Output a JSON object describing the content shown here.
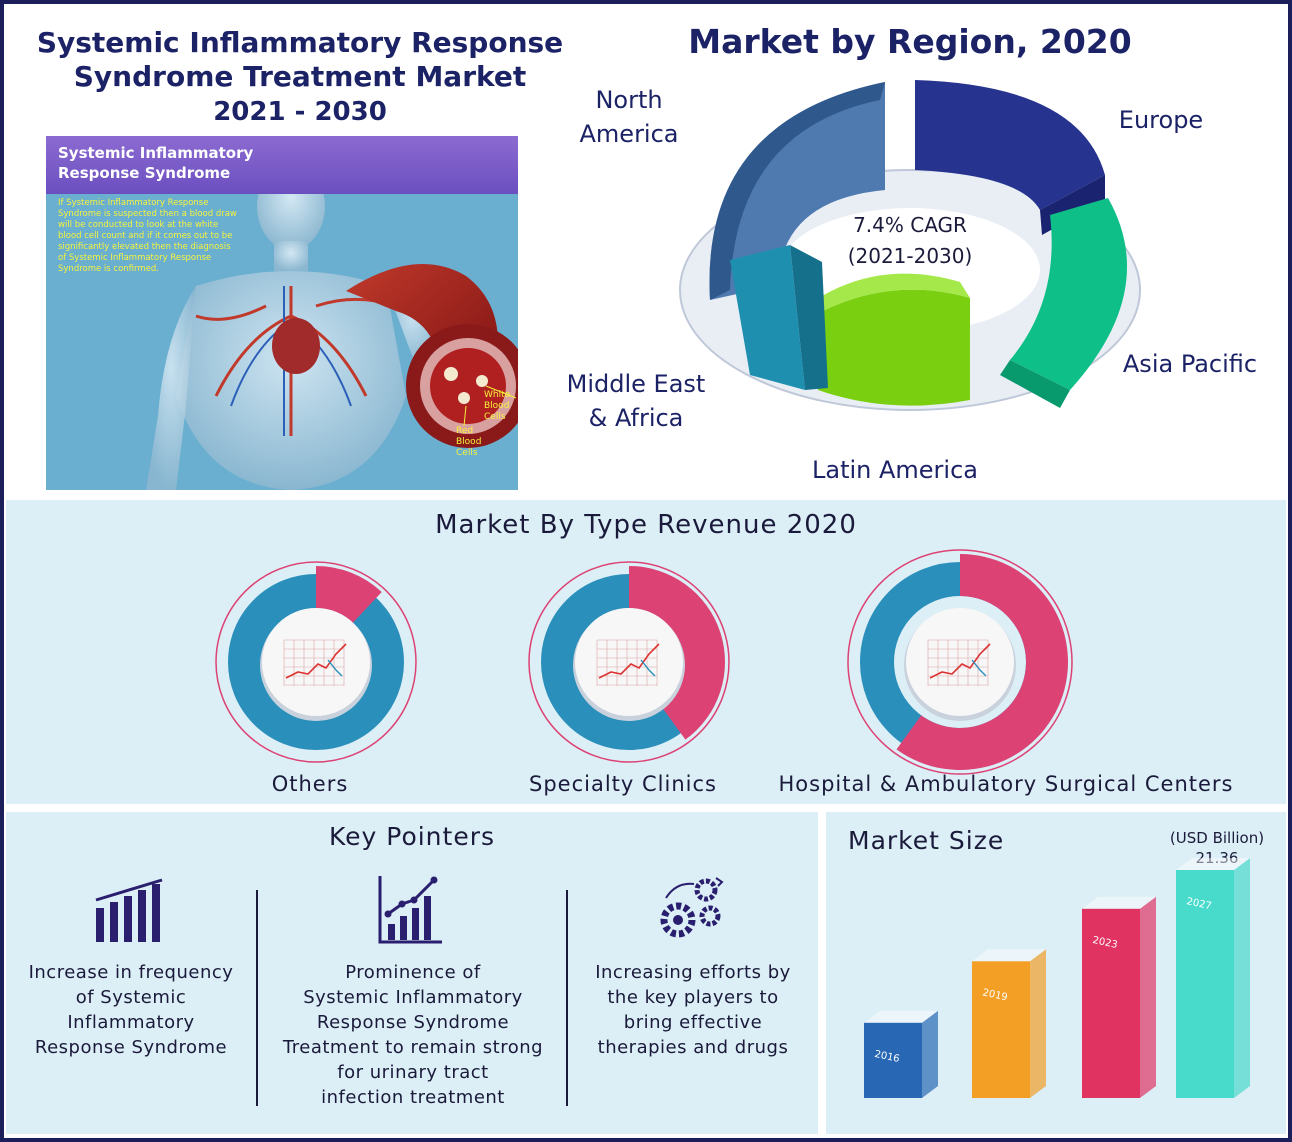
{
  "header": {
    "title_line1": "Systemic Inflammatory Response",
    "title_line2": "Syndrome Treatment Market",
    "years": "2021 - 2030"
  },
  "illustration": {
    "title_line1": "Systemic Inflammatory",
    "title_line2": "Response Syndrome",
    "description": "If Systemic Inflammatory Response Syndrome is suspected then a blood draw will be conducted to look at the white blood cell count and if it comes out to be significantly elevated then the diagnosis of Systemic Inflammatory Response Syndrome is confirmed.",
    "label_white": "White Blood Cells",
    "label_red": "Red Blood Cells",
    "colors": {
      "header": "#7a5cc8",
      "background": "#6aaed0",
      "text": "#f5f33d"
    }
  },
  "region": {
    "title": "Market by Region, 2020",
    "cagr_line1": "7.4% CAGR",
    "cagr_line2": "(2021-2030)",
    "labels": {
      "north_america_1": "North",
      "north_america_2": "America",
      "europe": "Europe",
      "asia_pacific": "Asia Pacific",
      "latin_america": "Latin America",
      "mea_1": "Middle East",
      "mea_2": "& Africa"
    },
    "colors": {
      "north_america": "#3e6aa0",
      "europe": "#27348f",
      "asia_pacific": "#0fbf88",
      "latin_america": "#7ad010",
      "mea": "#1f8fb0"
    }
  },
  "type_revenue": {
    "title": "Market By Type Revenue 2020",
    "segments": [
      {
        "label": "Others",
        "pink_share": 0.12
      },
      {
        "label": "Specialty Clinics",
        "pink_share": 0.4
      },
      {
        "label": "Hospital & Ambulatory Surgical Centers",
        "pink_share": 0.6
      }
    ],
    "colors": {
      "pink": "#dd4274",
      "blue": "#2a8fbb"
    }
  },
  "key_pointers": {
    "title": "Key Pointers",
    "items": [
      {
        "icon": "bar-chart-icon",
        "lines": [
          "Increase in frequency",
          "of Systemic",
          "Inflammatory",
          "Response Syndrome"
        ]
      },
      {
        "icon": "growth-chart-icon",
        "lines": [
          "Prominence of",
          "Systemic Inflammatory",
          "Response Syndrome",
          "Treatment to remain strong",
          "for urinary tract",
          "infection treatment"
        ]
      },
      {
        "icon": "gears-icon",
        "lines": [
          "Increasing efforts by",
          "the key players to",
          "bring effective",
          "therapies and drugs"
        ]
      }
    ],
    "icon_color": "#2a1f6e"
  },
  "market_size": {
    "title": "Market Size",
    "unit": "(USD Billion)",
    "value_2027": "21.36",
    "chart_data": {
      "type": "bar",
      "categories": [
        "2016",
        "2019",
        "2023",
        "2027"
      ],
      "values": [
        null,
        null,
        null,
        21.36
      ],
      "relative_heights": [
        0.33,
        0.6,
        0.83,
        1.0
      ]
    },
    "bar_colors": [
      "#1c5fb0",
      "#f39a1a",
      "#e0285a",
      "#3fd8c8"
    ]
  }
}
